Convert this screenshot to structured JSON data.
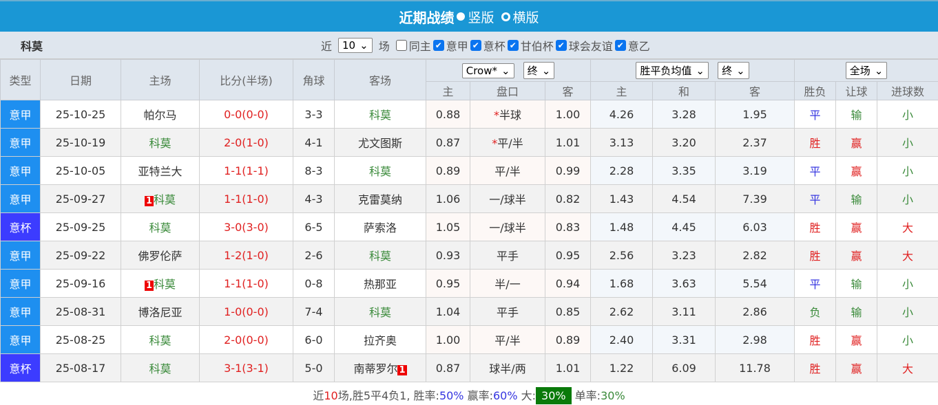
{
  "header": {
    "title": "近期战绩",
    "option1": "竖版",
    "option2": "横版"
  },
  "filter": {
    "team": "科莫",
    "prefix": "近",
    "count": "10",
    "suffix": "场",
    "same_home": "同主",
    "leagues": [
      "意甲",
      "意杯",
      "甘伯杯",
      "球会友谊",
      "意乙"
    ]
  },
  "columns": {
    "type": "类型",
    "date": "日期",
    "home": "主场",
    "score": "比分(半场)",
    "corner": "角球",
    "away": "客场",
    "odds_company": "Crow*",
    "odds_time": "终",
    "avg_select": "胜平负均值",
    "avg_time": "终",
    "period": "全场",
    "sub": [
      "主",
      "盘口",
      "客",
      "主",
      "和",
      "客",
      "胜负",
      "让球",
      "进球数"
    ]
  },
  "rows": [
    {
      "type": "意甲",
      "date": "25-10-25",
      "home": "帕尔马",
      "hb": "",
      "score": "0-0",
      "half": "(0-0)",
      "corner": "3-3",
      "away": "科莫",
      "ab": "",
      "h": "0.88",
      "star": "*",
      "line": "半球",
      "a": "1.00",
      "w": "4.26",
      "d": "3.28",
      "l": "1.95",
      "res": "平",
      "hc": "输",
      "ou": "小"
    },
    {
      "type": "意甲",
      "date": "25-10-19",
      "home": "科莫",
      "hb": "",
      "score": "2-0",
      "half": "(1-0)",
      "corner": "4-1",
      "away": "尤文图斯",
      "ab": "",
      "h": "0.87",
      "star": "*",
      "line": "平/半",
      "a": "1.01",
      "w": "3.13",
      "d": "3.20",
      "l": "2.37",
      "res": "胜",
      "hc": "赢",
      "ou": "小"
    },
    {
      "type": "意甲",
      "date": "25-10-05",
      "home": "亚特兰大",
      "hb": "",
      "score": "1-1",
      "half": "(1-1)",
      "corner": "8-3",
      "away": "科莫",
      "ab": "",
      "h": "0.89",
      "star": "",
      "line": "平/半",
      "a": "0.99",
      "w": "2.28",
      "d": "3.35",
      "l": "3.19",
      "res": "平",
      "hc": "赢",
      "ou": "小"
    },
    {
      "type": "意甲",
      "date": "25-09-27",
      "home": "科莫",
      "hb": "1",
      "score": "1-1",
      "half": "(1-0)",
      "corner": "4-3",
      "away": "克雷莫纳",
      "ab": "",
      "h": "1.06",
      "star": "",
      "line": "一/球半",
      "a": "0.82",
      "w": "1.43",
      "d": "4.54",
      "l": "7.39",
      "res": "平",
      "hc": "输",
      "ou": "小"
    },
    {
      "type": "意杯",
      "date": "25-09-25",
      "home": "科莫",
      "hb": "",
      "score": "3-0",
      "half": "(3-0)",
      "corner": "6-5",
      "away": "萨索洛",
      "ab": "",
      "h": "1.05",
      "star": "",
      "line": "一/球半",
      "a": "0.83",
      "w": "1.48",
      "d": "4.45",
      "l": "6.03",
      "res": "胜",
      "hc": "赢",
      "ou": "大"
    },
    {
      "type": "意甲",
      "date": "25-09-22",
      "home": "佛罗伦萨",
      "hb": "",
      "score": "1-2",
      "half": "(1-0)",
      "corner": "2-6",
      "away": "科莫",
      "ab": "",
      "h": "0.93",
      "star": "",
      "line": "平手",
      "a": "0.95",
      "w": "2.56",
      "d": "3.23",
      "l": "2.82",
      "res": "胜",
      "hc": "赢",
      "ou": "大"
    },
    {
      "type": "意甲",
      "date": "25-09-16",
      "home": "科莫",
      "hb": "1",
      "score": "1-1",
      "half": "(1-0)",
      "corner": "0-8",
      "away": "热那亚",
      "ab": "",
      "h": "0.95",
      "star": "",
      "line": "半/一",
      "a": "0.94",
      "w": "1.68",
      "d": "3.63",
      "l": "5.54",
      "res": "平",
      "hc": "输",
      "ou": "小"
    },
    {
      "type": "意甲",
      "date": "25-08-31",
      "home": "博洛尼亚",
      "hb": "",
      "score": "1-0",
      "half": "(0-0)",
      "corner": "7-4",
      "away": "科莫",
      "ab": "",
      "h": "1.04",
      "star": "",
      "line": "平手",
      "a": "0.85",
      "w": "2.62",
      "d": "3.11",
      "l": "2.86",
      "res": "负",
      "hc": "输",
      "ou": "小"
    },
    {
      "type": "意甲",
      "date": "25-08-25",
      "home": "科莫",
      "hb": "",
      "score": "2-0",
      "half": "(0-0)",
      "corner": "6-0",
      "away": "拉齐奥",
      "ab": "",
      "h": "1.00",
      "star": "",
      "line": "平/半",
      "a": "0.89",
      "w": "2.40",
      "d": "3.31",
      "l": "2.98",
      "res": "胜",
      "hc": "赢",
      "ou": "小"
    },
    {
      "type": "意杯",
      "date": "25-08-17",
      "home": "科莫",
      "hb": "",
      "score": "3-1",
      "half": "(3-1)",
      "corner": "5-0",
      "away": "南蒂罗尔",
      "ab": "1",
      "h": "0.87",
      "star": "",
      "line": "球半/两",
      "a": "1.01",
      "w": "1.22",
      "d": "6.09",
      "l": "11.78",
      "res": "胜",
      "hc": "赢",
      "ou": "大"
    }
  ],
  "summary": {
    "t1": "近",
    "n": "10",
    "t2": "场,胜5平4负1, 胜率:",
    "win": "50%",
    "t3": " 赢率:",
    "hc": "60%",
    "t4": " 大:",
    "big": "30%",
    "t5": " 单率:",
    "odd": "30%"
  },
  "colors": {
    "header": "#1a97d5",
    "league": "#1e8ff0",
    "cup": "#3c3cff",
    "summary_pill": "#0a7a0a"
  }
}
